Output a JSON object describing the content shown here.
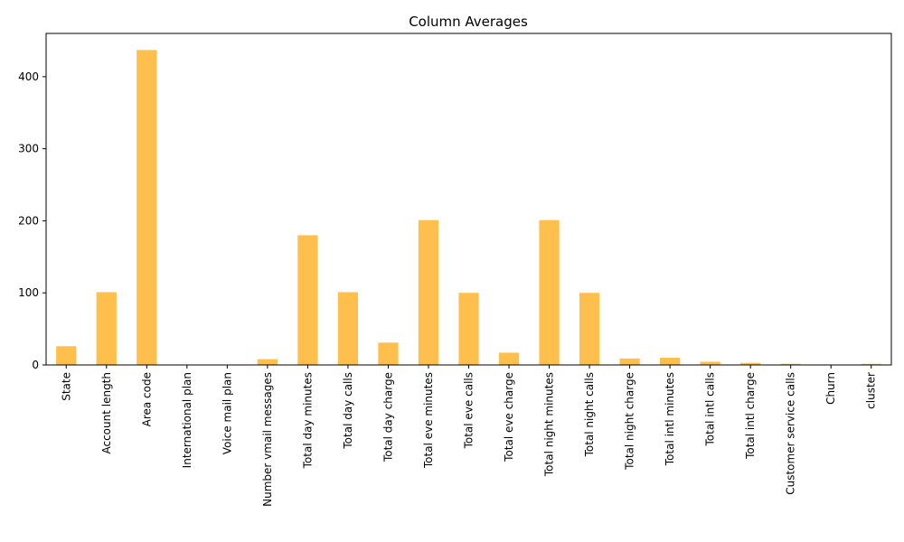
{
  "chart_data": {
    "type": "bar",
    "title": "Column Averages",
    "xlabel": "",
    "ylabel": "",
    "categories": [
      "State",
      "Account length",
      "Area code",
      "International plan",
      "Voice mail plan",
      "Number vmail messages",
      "Total day minutes",
      "Total day calls",
      "Total day charge",
      "Total eve minutes",
      "Total eve calls",
      "Total eve charge",
      "Total night minutes",
      "Total night calls",
      "Total night charge",
      "Total intl minutes",
      "Total intl calls",
      "Total intl charge",
      "Customer service calls",
      "Churn",
      "cluster"
    ],
    "values": [
      26,
      101,
      437,
      0.1,
      0.28,
      8,
      180,
      101,
      31,
      201,
      100,
      17,
      201,
      100,
      9,
      10,
      4.5,
      2.8,
      1.6,
      0.15,
      1.5
    ],
    "ylim": [
      0,
      460
    ],
    "yticks": [
      0,
      100,
      200,
      300,
      400
    ],
    "bar_color": "#ffbf4d",
    "grid": false,
    "legend": "none"
  }
}
